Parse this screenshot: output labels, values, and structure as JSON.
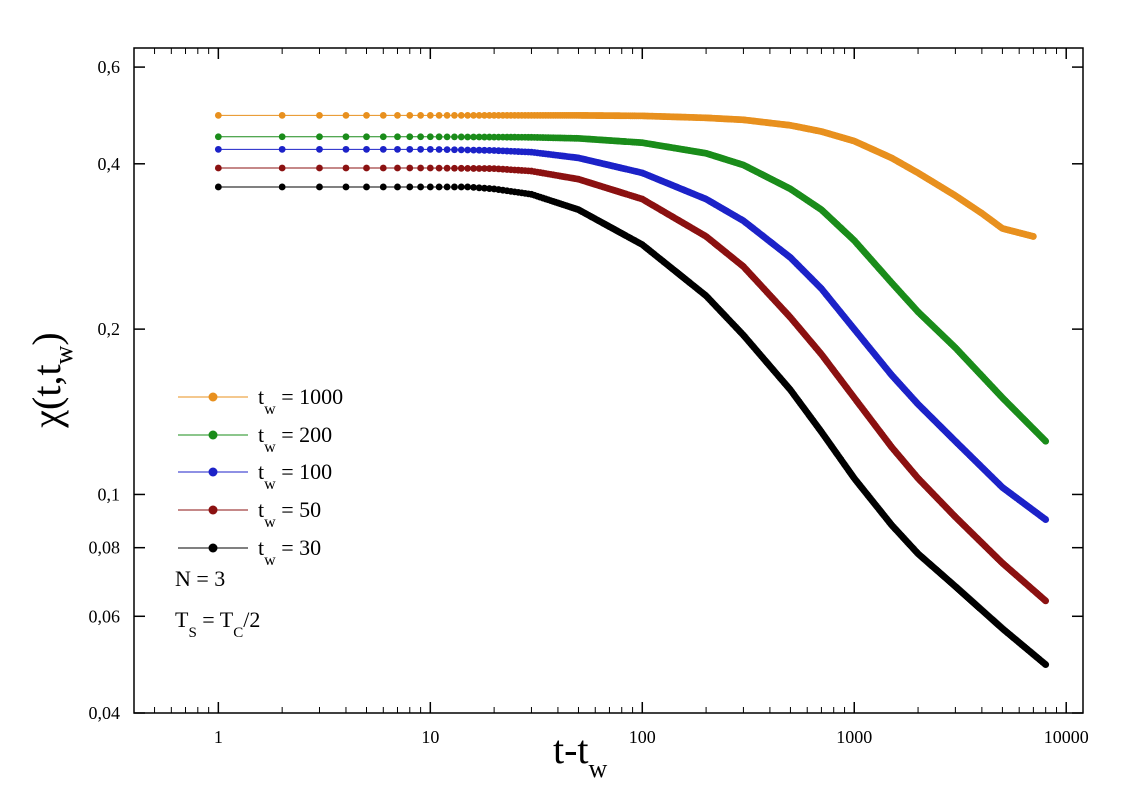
{
  "chart_data": {
    "type": "scatter",
    "x_scale": "log",
    "y_scale": "log",
    "xlim": [
      0.4,
      12000
    ],
    "ylim": [
      0.04,
      0.65
    ],
    "xlabel": {
      "main": "t-t",
      "sub": "w"
    },
    "ylabel": {
      "main": "χ(t,t",
      "sub": "w",
      "close": ")"
    },
    "xticks": [
      {
        "value": 1,
        "label": "1"
      },
      {
        "value": 10,
        "label": "10"
      },
      {
        "value": 100,
        "label": "100"
      },
      {
        "value": 1000,
        "label": "1000"
      },
      {
        "value": 10000,
        "label": "10000"
      }
    ],
    "yticks": [
      {
        "value": 0.04,
        "label": "0,04"
      },
      {
        "value": 0.06,
        "label": "0,06"
      },
      {
        "value": 0.08,
        "label": "0,08"
      },
      {
        "value": 0.1,
        "label": "0,1"
      },
      {
        "value": 0.2,
        "label": "0,2"
      },
      {
        "value": 0.4,
        "label": "0,4"
      },
      {
        "value": 0.6,
        "label": "0,6"
      }
    ],
    "legend": {
      "placement": "left-middle"
    },
    "series": [
      {
        "tw": "1000",
        "label_prefix": "t",
        "label_sub": "w",
        "label_suffix": " = 1000",
        "color": "#e8901e",
        "x": [
          1,
          10,
          50,
          100,
          200,
          300,
          500,
          700,
          1000,
          1500,
          2000,
          3000,
          4000,
          5000,
          7000
        ],
        "y": [
          0.49,
          0.49,
          0.49,
          0.489,
          0.485,
          0.481,
          0.47,
          0.458,
          0.44,
          0.41,
          0.385,
          0.35,
          0.325,
          0.305,
          0.295
        ]
      },
      {
        "tw": "200",
        "label_prefix": "t",
        "label_sub": "w",
        "label_suffix": " = 200",
        "color": "#1a8c1a",
        "x": [
          1,
          10,
          30,
          50,
          100,
          200,
          300,
          500,
          700,
          1000,
          1500,
          2000,
          3000,
          5000,
          8000
        ],
        "y": [
          0.448,
          0.448,
          0.447,
          0.445,
          0.437,
          0.418,
          0.398,
          0.36,
          0.33,
          0.29,
          0.243,
          0.215,
          0.185,
          0.15,
          0.125
        ]
      },
      {
        "tw": "100",
        "label_prefix": "t",
        "label_sub": "w",
        "label_suffix": " = 100",
        "color": "#1c22c8",
        "x": [
          1,
          10,
          20,
          30,
          50,
          100,
          200,
          300,
          500,
          700,
          1000,
          1500,
          2000,
          3000,
          5000,
          8000
        ],
        "y": [
          0.425,
          0.425,
          0.423,
          0.42,
          0.41,
          0.385,
          0.345,
          0.315,
          0.27,
          0.237,
          0.2,
          0.165,
          0.146,
          0.125,
          0.103,
          0.09
        ]
      },
      {
        "tw": "50",
        "label_prefix": "t",
        "label_sub": "w",
        "label_suffix": " = 50",
        "color": "#8b1111",
        "x": [
          1,
          10,
          20,
          30,
          50,
          100,
          200,
          300,
          500,
          700,
          1000,
          1500,
          2000,
          3000,
          5000,
          8000
        ],
        "y": [
          0.393,
          0.393,
          0.392,
          0.388,
          0.375,
          0.345,
          0.295,
          0.26,
          0.21,
          0.18,
          0.15,
          0.122,
          0.107,
          0.091,
          0.075,
          0.064
        ]
      },
      {
        "tw": "30",
        "label_prefix": "t",
        "label_sub": "w",
        "label_suffix": " = 30",
        "color": "#000000",
        "x": [
          1,
          10,
          15,
          20,
          30,
          50,
          100,
          200,
          300,
          500,
          700,
          1000,
          1500,
          2000,
          3000,
          5000,
          8000
        ],
        "y": [
          0.363,
          0.363,
          0.363,
          0.36,
          0.352,
          0.33,
          0.285,
          0.23,
          0.195,
          0.155,
          0.13,
          0.107,
          0.088,
          0.078,
          0.068,
          0.057,
          0.049
        ]
      }
    ],
    "annotations": [
      {
        "id": "n",
        "prefix": "N = 3",
        "sub1": "",
        "mid": "",
        "sub2": "",
        "suffix": ""
      },
      {
        "id": "ts",
        "prefix": "T",
        "sub1": "S",
        "mid": " = T",
        "sub2": "C",
        "suffix": "/2"
      }
    ]
  }
}
